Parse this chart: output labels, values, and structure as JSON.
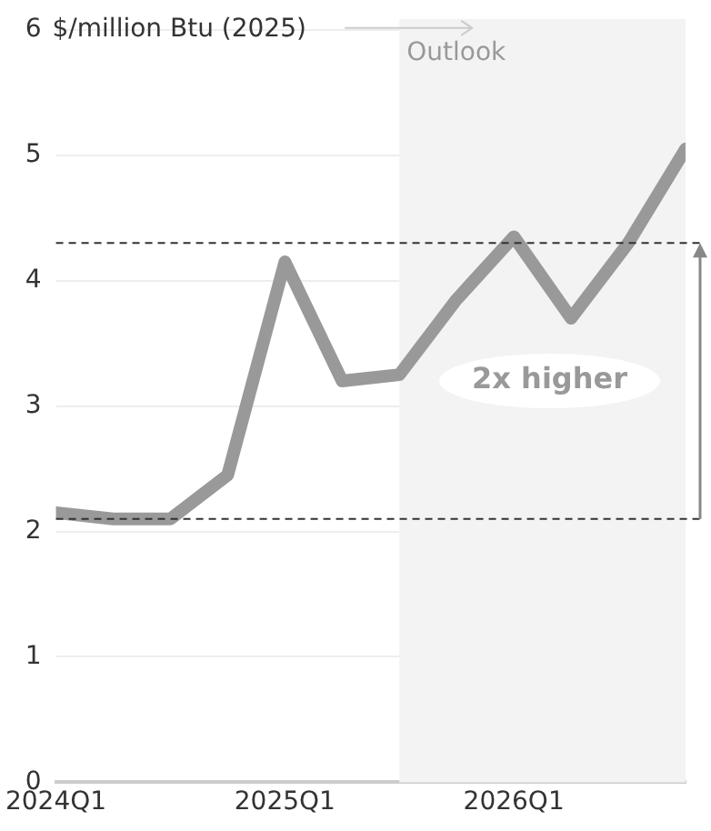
{
  "chart_data": {
    "type": "line",
    "ylabel": "$/million Btu (2025)",
    "x": [
      "2024-01",
      "2024-04",
      "2024-07",
      "2024-10",
      "2025-01",
      "2025-04",
      "2025-07",
      "2025-10",
      "2026-01",
      "2026-04",
      "2026-07",
      "2026-10"
    ],
    "series": [
      {
        "color": "#999999",
        "values": [
          2.15,
          2.1,
          2.1,
          2.45,
          4.15,
          3.2,
          3.25,
          3.85,
          4.35,
          3.7,
          4.3,
          5.05
        ]
      }
    ],
    "xlim": [
      "2024-01",
      "2026-10"
    ],
    "xticks": [
      {
        "value": "2024-01",
        "label": "2024Q1"
      },
      {
        "value": "2025-01",
        "label": "2025Q1"
      },
      {
        "value": "2026-01",
        "label": "2026Q1"
      }
    ],
    "ylim": [
      0,
      6
    ],
    "yticks": [
      0,
      1,
      2,
      3,
      4,
      5,
      6
    ],
    "grid": "y",
    "legend": false,
    "marker": "none",
    "line_style": "solid",
    "bands": [
      {
        "axis": "x",
        "from": "2025-07",
        "to": "2026-10",
        "label": "Outlook",
        "color": "#f3f3f3"
      }
    ],
    "ref_lines": [
      {
        "axis": "y",
        "value": 2.1,
        "line_style": "dashed",
        "color": "#333333"
      },
      {
        "axis": "y",
        "value": 4.3,
        "line_style": "dashed",
        "color": "#333333"
      }
    ],
    "annotations": [
      "2x higher"
    ]
  }
}
